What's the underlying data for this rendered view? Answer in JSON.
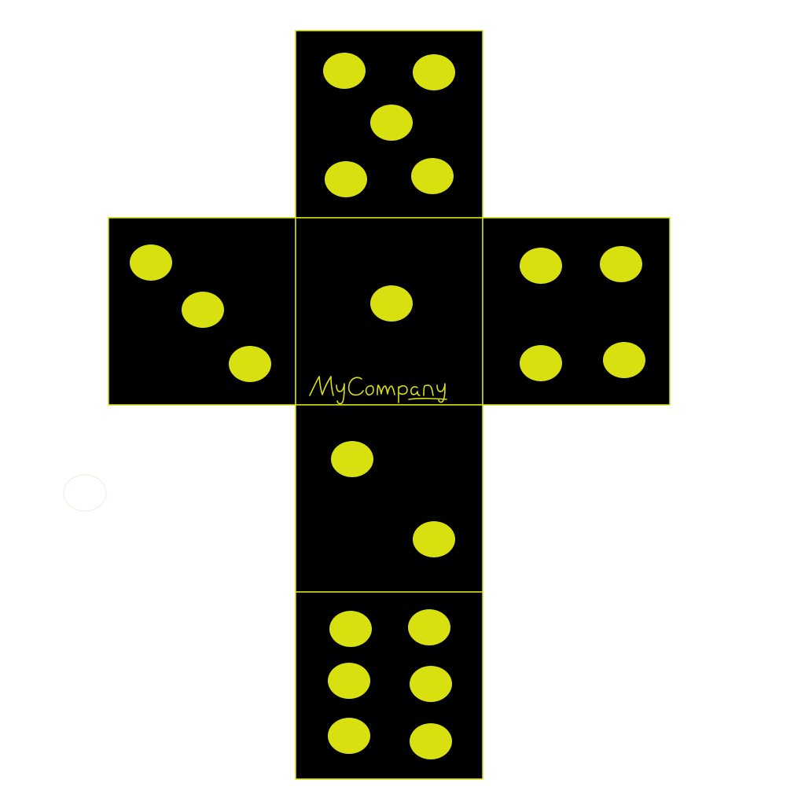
{
  "colors": {
    "background": "#ffffff",
    "face_fill": "#000000",
    "face_border": "#d9e010",
    "pip": "#d9e010",
    "signature": "#d9e010",
    "stray_mark": "#f2f2e6"
  },
  "dice_net": {
    "faces": [
      {
        "position": "top",
        "pips": 5
      },
      {
        "position": "left",
        "pips": 3
      },
      {
        "position": "center",
        "pips": 1
      },
      {
        "position": "right",
        "pips": 4
      },
      {
        "position": "below-center",
        "pips": 2
      },
      {
        "position": "bottom",
        "pips": 6
      }
    ],
    "signature_text": "MyCompany",
    "signature_style": "handwritten"
  }
}
